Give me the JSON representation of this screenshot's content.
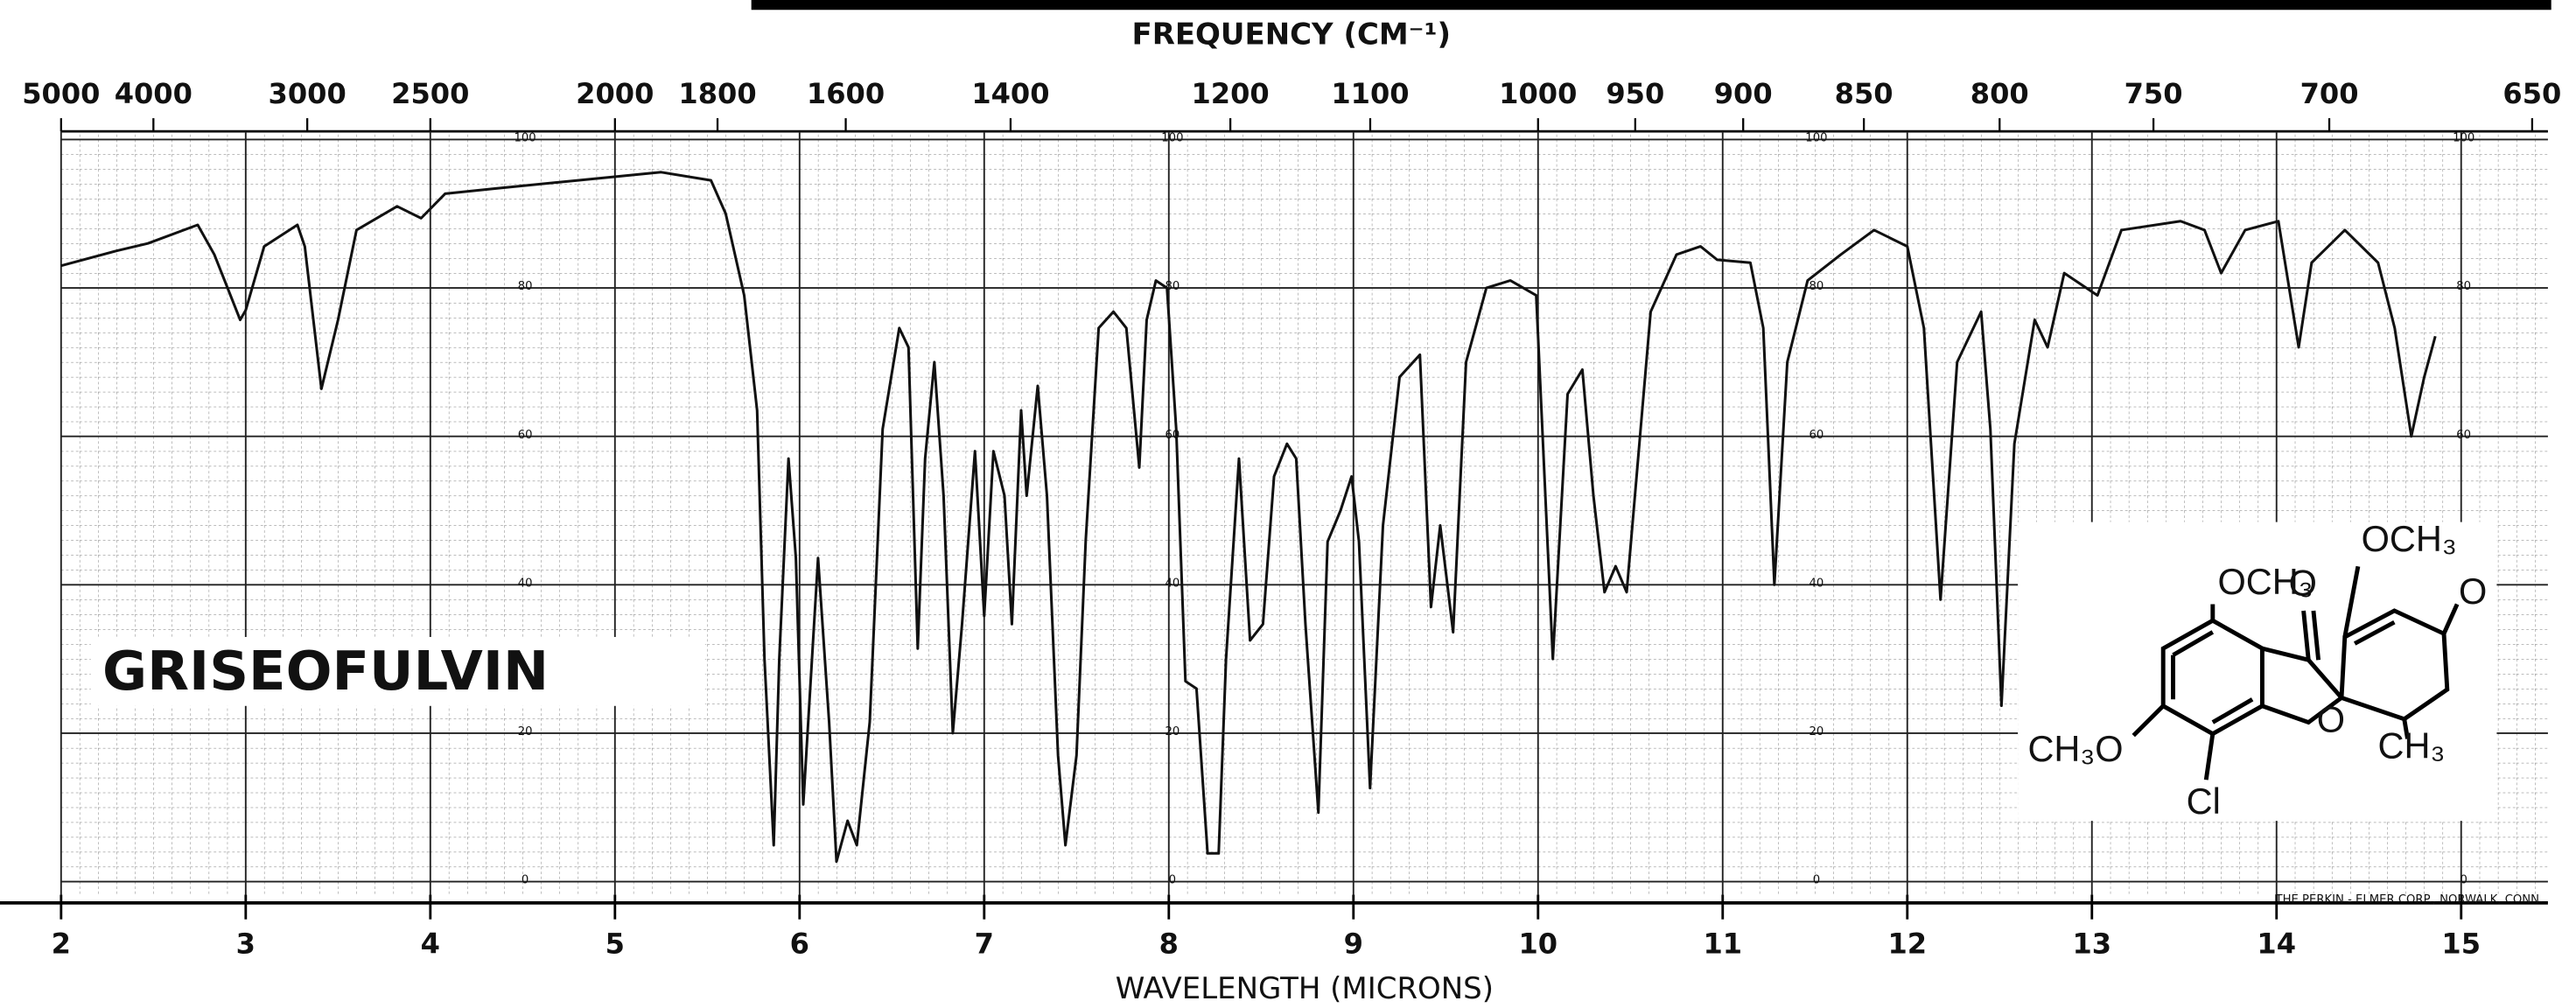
{
  "chart_data": {
    "type": "line",
    "title": "GRISEOFULVIN",
    "x_label": "WAVELENGTH (MICRONS)",
    "x2_label": "FREQUENCY (CM⁻¹)",
    "note": "THE PERKIN - ELMER CORP., NORWALK, CONN.",
    "color": "#111111",
    "xlim": [
      2,
      15.47
    ],
    "ylim": [
      0,
      100
    ],
    "xticks": [
      2,
      3,
      4,
      5,
      6,
      7,
      8,
      9,
      10,
      11,
      12,
      13,
      14,
      15
    ],
    "x2ticks": [
      5000,
      4000,
      3000,
      2500,
      2000,
      1800,
      1600,
      1400,
      1200,
      1100,
      1000,
      950,
      900,
      850,
      800,
      750,
      700,
      650
    ],
    "yticks": [
      0,
      20,
      40,
      60,
      80,
      100
    ],
    "grid": true,
    "x": [
      2.0,
      2.3,
      2.47,
      2.74,
      2.83,
      2.97,
      3.0,
      3.1,
      3.28,
      3.32,
      3.41,
      3.5,
      3.6,
      3.82,
      3.95,
      4.08,
      4.35,
      4.8,
      5.25,
      5.52,
      5.6,
      5.7,
      5.77,
      5.81,
      5.86,
      5.89,
      5.94,
      5.98,
      6.02,
      6.1,
      6.16,
      6.2,
      6.26,
      6.31,
      6.38,
      6.45,
      6.54,
      6.59,
      6.64,
      6.68,
      6.73,
      6.78,
      6.83,
      6.88,
      6.95,
      7.0,
      7.05,
      7.11,
      7.15,
      7.2,
      7.23,
      7.29,
      7.34,
      7.4,
      7.44,
      7.5,
      7.55,
      7.62,
      7.7,
      7.77,
      7.84,
      7.88,
      7.93,
      7.99,
      8.04,
      8.09,
      8.15,
      8.21,
      8.27,
      8.31,
      8.38,
      8.44,
      8.51,
      8.57,
      8.64,
      8.69,
      8.74,
      8.81,
      8.86,
      8.93,
      8.99,
      9.03,
      9.09,
      9.16,
      9.25,
      9.36,
      9.42,
      9.47,
      9.54,
      9.61,
      9.72,
      9.85,
      9.99,
      10.08,
      10.16,
      10.24,
      10.3,
      10.36,
      10.42,
      10.48,
      10.61,
      10.75,
      10.88,
      10.97,
      11.15,
      11.22,
      11.28,
      11.35,
      11.46,
      11.64,
      11.82,
      12.0,
      12.09,
      12.18,
      12.27,
      12.4,
      12.45,
      12.51,
      12.58,
      12.69,
      12.76,
      12.85,
      13.03,
      13.16,
      13.48,
      13.61,
      13.7,
      13.83,
      14.01,
      14.12,
      14.19,
      14.37,
      14.55,
      14.64,
      14.73,
      14.8,
      14.86
    ],
    "values": [
      83,
      85,
      86,
      88.5,
      84.5,
      75.7,
      77,
      85.6,
      88.5,
      85.6,
      66.4,
      75.7,
      87.8,
      91,
      89.4,
      92.7,
      93.4,
      94.5,
      95.6,
      94.5,
      90,
      79,
      63.5,
      30,
      4.9,
      30,
      57,
      43.6,
      10.4,
      43.6,
      21.5,
      2.7,
      8.2,
      4.9,
      21.5,
      61,
      74.6,
      72,
      31.4,
      57,
      70,
      52,
      20,
      34.7,
      58,
      35.8,
      58,
      52,
      34.7,
      63.5,
      52,
      66.8,
      52,
      17,
      4.9,
      17,
      46,
      74.6,
      76.8,
      74.6,
      55.8,
      75.7,
      81,
      80,
      61,
      27,
      26,
      3.8,
      3.8,
      30,
      57,
      32.5,
      34.7,
      54.6,
      59,
      57,
      34.7,
      9.3,
      45.8,
      50,
      54.6,
      45.8,
      12.6,
      48,
      68,
      71,
      37,
      48,
      33.6,
      70,
      80,
      81,
      79,
      30,
      65.7,
      69,
      52,
      39,
      42.5,
      39,
      76.8,
      84.5,
      85.6,
      83.8,
      83.4,
      74.6,
      40,
      70,
      81,
      84.5,
      87.8,
      85.6,
      74.6,
      38,
      70,
      76.8,
      61,
      23.7,
      59,
      75.7,
      72,
      82,
      79,
      87.8,
      89,
      87.8,
      82,
      87.8,
      89,
      72,
      83.4,
      87.8,
      83.4,
      74.6,
      60,
      68,
      73.5
    ]
  },
  "structure": {
    "labels": [
      "OCH₃",
      "O",
      "OCH₃",
      "O",
      "CH₃O",
      "Cl",
      "O",
      "CH₃"
    ]
  }
}
